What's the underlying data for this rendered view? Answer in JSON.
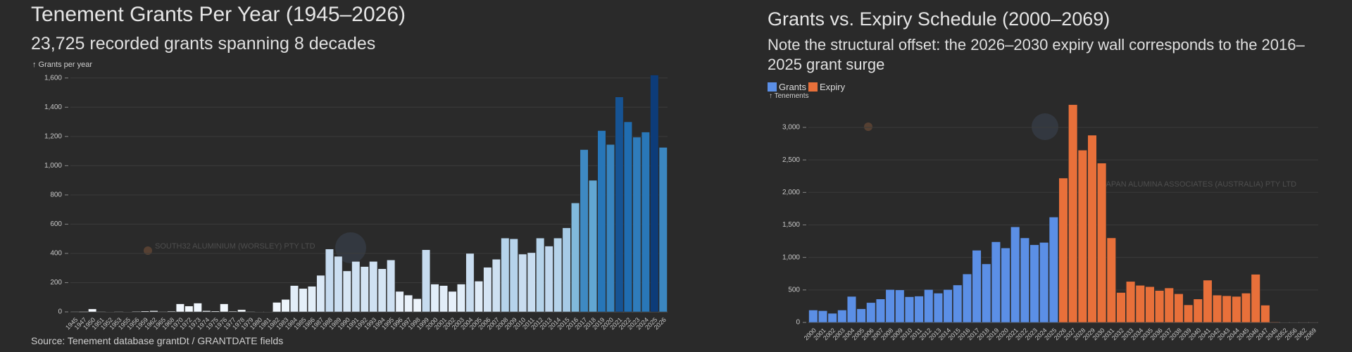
{
  "chart_data": [
    {
      "type": "bar",
      "title": "Tenement Grants Per Year (1945–2026)",
      "subtitle": "23,725 recorded grants spanning 8 decades",
      "y_label": "↑ Grants per year",
      "source": "Source: Tenement database grantDt / GRANTDATE fields",
      "categories": [
        "1945",
        "1947",
        "1950",
        "1951",
        "1952",
        "1953",
        "1955",
        "1956",
        "1959",
        "1962",
        "1965",
        "1968",
        "1970",
        "1972",
        "1973",
        "1974",
        "1975",
        "1976",
        "1977",
        "1978",
        "1979",
        "1980",
        "1981",
        "1982",
        "1983",
        "1984",
        "1985",
        "1986",
        "1987",
        "1988",
        "1989",
        "1990",
        "1991",
        "1992",
        "1993",
        "1994",
        "1995",
        "1996",
        "1997",
        "1998",
        "1999",
        "2000",
        "2001",
        "2002",
        "2003",
        "2004",
        "2005",
        "2006",
        "2007",
        "2008",
        "2009",
        "2010",
        "2011",
        "2012",
        "2013",
        "2014",
        "2015",
        "2016",
        "2017",
        "2018",
        "2019",
        "2020",
        "2021",
        "2022",
        "2023",
        "2024",
        "2025",
        "2026"
      ],
      "values": [
        3,
        0,
        20,
        3,
        2,
        3,
        2,
        4,
        6,
        8,
        3,
        5,
        55,
        40,
        60,
        8,
        6,
        55,
        5,
        15,
        3,
        2,
        2,
        65,
        85,
        180,
        160,
        175,
        250,
        430,
        380,
        280,
        345,
        310,
        345,
        295,
        355,
        140,
        115,
        90,
        425,
        190,
        180,
        140,
        190,
        400,
        210,
        305,
        360,
        505,
        500,
        395,
        405,
        505,
        450,
        505,
        575,
        745,
        1110,
        900,
        1240,
        1145,
        1470,
        1300,
        1195,
        1230,
        1620,
        1125
      ],
      "color_scale": [
        "#f7fbff",
        "#c6dbef",
        "#6baed6",
        "#2171b5",
        "#08306b"
      ],
      "ylim": [
        0,
        1700
      ],
      "yticks": [
        0,
        200,
        400,
        600,
        800,
        {
          "value": 1000,
          "label": "1,000"
        },
        {
          "value": 1200,
          "label": "1,200"
        },
        {
          "value": 1400,
          "label": "1,400"
        },
        {
          "value": 1600,
          "label": "1,600"
        }
      ],
      "grid": true
    },
    {
      "type": "bar",
      "title": "Grants vs. Expiry Schedule (2000–2069)",
      "subtitle": "Note the structural offset: the 2026–2030 expiry wall corresponds to the 2016–2025 grant surge",
      "y_label": "↑ Tenements",
      "categories": [
        "2000",
        "2001",
        "2002",
        "2003",
        "2004",
        "2005",
        "2006",
        "2007",
        "2008",
        "2009",
        "2010",
        "2011",
        "2012",
        "2013",
        "2014",
        "2015",
        "2016",
        "2017",
        "2018",
        "2019",
        "2020",
        "2021",
        "2022",
        "2023",
        "2024",
        "2025",
        "2026",
        "2027",
        "2028",
        "2029",
        "2030",
        "2031",
        "2032",
        "2033",
        "2034",
        "2035",
        "2036",
        "2037",
        "2038",
        "2039",
        "2040",
        "2041",
        "2042",
        "2043",
        "2044",
        "2045",
        "2046",
        "2047",
        "2048",
        "2052",
        "2056",
        "2062",
        "2069"
      ],
      "series": [
        {
          "name": "Grants",
          "color": "#5b8fe6",
          "values": [
            190,
            180,
            140,
            190,
            400,
            210,
            305,
            360,
            505,
            500,
            395,
            405,
            505,
            450,
            505,
            575,
            745,
            1110,
            900,
            1240,
            1145,
            1470,
            1300,
            1195,
            1230,
            1620,
            null,
            null,
            null,
            null,
            null,
            null,
            null,
            null,
            null,
            null,
            null,
            null,
            null,
            null,
            null,
            null,
            null,
            null,
            null,
            null,
            null,
            null,
            null,
            null,
            null,
            null,
            null
          ]
        },
        {
          "name": "Expiry",
          "color": "#e8703a",
          "values": [
            null,
            null,
            null,
            null,
            null,
            null,
            null,
            null,
            null,
            null,
            null,
            null,
            null,
            null,
            null,
            null,
            null,
            null,
            null,
            null,
            null,
            null,
            null,
            null,
            null,
            null,
            2220,
            3350,
            2650,
            2880,
            2450,
            1300,
            460,
            630,
            570,
            550,
            490,
            530,
            440,
            270,
            360,
            650,
            420,
            410,
            400,
            450,
            740,
            265,
            8,
            4,
            3,
            2,
            2
          ]
        }
      ],
      "ylim": [
        0,
        3400
      ],
      "yticks": [
        0,
        500,
        {
          "value": 1000,
          "label": "1,000"
        },
        {
          "value": 1500,
          "label": "1,500"
        },
        {
          "value": 2000,
          "label": "2,000"
        },
        {
          "value": 2500,
          "label": "2,500"
        },
        {
          "value": 3000,
          "label": "3,000"
        }
      ],
      "grid": true
    }
  ],
  "background_labels": [
    "SOUTH32 ALUMINIUM (WORSLEY) PTY LTD",
    "JAPAN ALUMINA ASSOCIATES (AUSTRALIA) PTY LTD"
  ]
}
